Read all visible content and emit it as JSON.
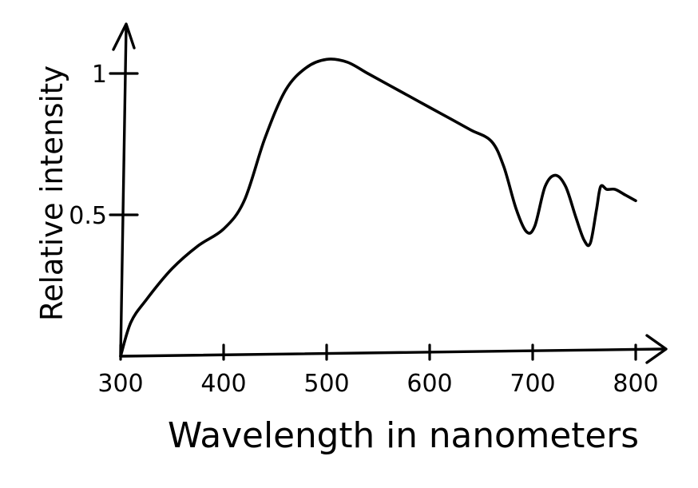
{
  "chart_data": {
    "type": "line",
    "xlabel": "Wavelength in nanometers",
    "ylabel": "Relative intensity",
    "xlim": [
      300,
      800
    ],
    "ylim": [
      0,
      1.1
    ],
    "grid": false,
    "x_ticks": [
      {
        "value": 300,
        "label": "300"
      },
      {
        "value": 400,
        "label": "400"
      },
      {
        "value": 500,
        "label": "500"
      },
      {
        "value": 600,
        "label": "600"
      },
      {
        "value": 700,
        "label": "700"
      },
      {
        "value": 800,
        "label": "800"
      }
    ],
    "y_ticks": [
      {
        "value": 0.5,
        "label": "0.5"
      },
      {
        "value": 1,
        "label": "1"
      }
    ],
    "series": [
      {
        "x": [
          300,
          310,
          325,
          350,
          375,
          400,
          420,
          440,
          460,
          480,
          500,
          520,
          540,
          560,
          580,
          600,
          620,
          640,
          660,
          672,
          684,
          694,
          702,
          712,
          722,
          732,
          742,
          750,
          756,
          762,
          766,
          772,
          780,
          790,
          800
        ],
        "y": [
          0.0,
          0.12,
          0.2,
          0.31,
          0.39,
          0.45,
          0.55,
          0.77,
          0.94,
          1.02,
          1.05,
          1.04,
          1.0,
          0.96,
          0.92,
          0.88,
          0.84,
          0.8,
          0.76,
          0.67,
          0.52,
          0.44,
          0.46,
          0.6,
          0.64,
          0.6,
          0.49,
          0.41,
          0.4,
          0.52,
          0.6,
          0.59,
          0.59,
          0.57,
          0.55
        ],
        "color": "#000000"
      }
    ]
  }
}
